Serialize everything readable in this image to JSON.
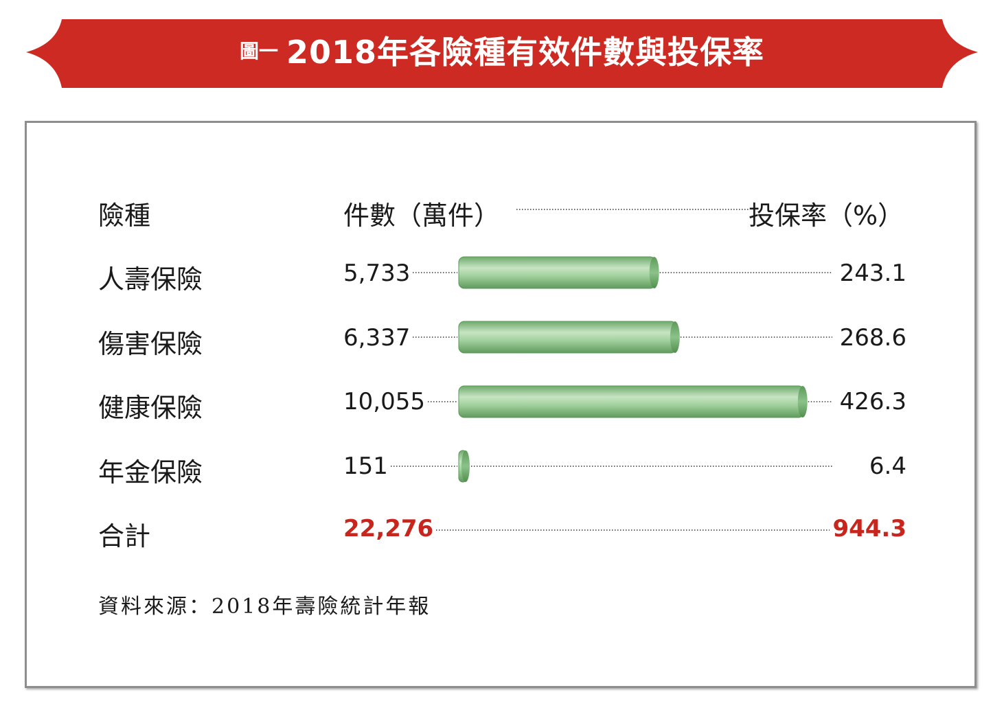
{
  "title": {
    "prefix": "圖一",
    "main": "2018年各險種有效件數與投保率"
  },
  "headers": {
    "category": "險種",
    "count": "件數（萬件）",
    "rate": "投保率（%）"
  },
  "chart_data": {
    "type": "bar",
    "title": "2018年各險種有效件數與投保率",
    "categories": [
      "人壽保險",
      "傷害保險",
      "健康保險",
      "年金保險"
    ],
    "series": [
      {
        "name": "件數（萬件）",
        "values": [
          5733,
          6337,
          10055,
          151
        ]
      },
      {
        "name": "投保率（%）",
        "values": [
          243.1,
          268.6,
          426.3,
          6.4
        ]
      }
    ],
    "labels": {
      "counts": [
        "5,733",
        "6,337",
        "10,055",
        "151"
      ],
      "rates": [
        "243.1",
        "268.6",
        "426.3",
        "6.4"
      ]
    },
    "total": {
      "label": "合計",
      "count": "22,276",
      "rate": "944.3"
    }
  },
  "colors": {
    "banner": "#cc2a22",
    "bar": "#8cc28a",
    "bar_edge": "#4f8f4c",
    "total": "#c8261d"
  },
  "source": "資料來源：2018年壽險統計年報"
}
